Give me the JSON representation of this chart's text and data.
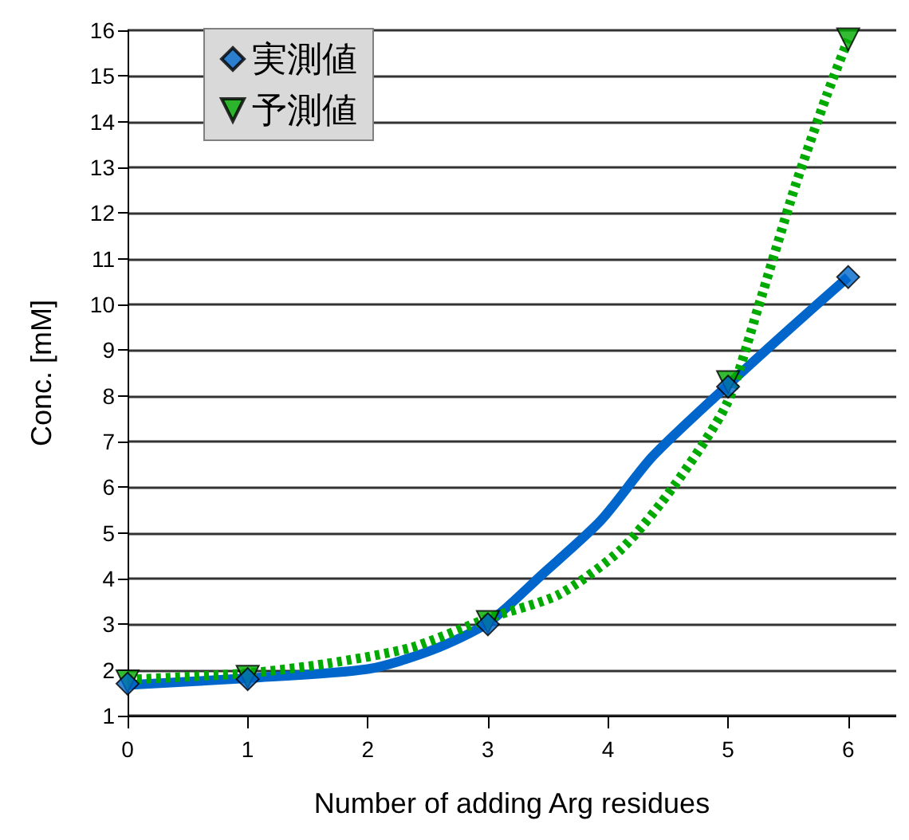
{
  "chart_data": {
    "type": "scatter",
    "xlabel": "Number of adding Arg residues",
    "ylabel": "Conc. [mM]",
    "xlim": [
      0,
      6.4
    ],
    "xticks": [
      0,
      1,
      2,
      3,
      4,
      5,
      6
    ],
    "ylim": [
      1,
      16
    ],
    "yticks": [
      1,
      2,
      3,
      4,
      5,
      6,
      7,
      8,
      9,
      10,
      11,
      12,
      13,
      14,
      15,
      16
    ],
    "grid": "y",
    "legend": "top left",
    "series": [
      {
        "type": "line",
        "color": "#0066cc",
        "line_style": "solid",
        "marker": "none",
        "x": [
          0,
          1,
          2,
          2.53,
          3,
          3.46,
          3.94,
          4.37,
          5,
          5.51,
          6
        ],
        "values": [
          1.67,
          1.82,
          2.02,
          2.43,
          3.03,
          4.11,
          5.27,
          6.67,
          8.24,
          9.46,
          10.6
        ]
      },
      {
        "type": "line",
        "color": "#00aa00",
        "line_style": "dotted",
        "marker": "none",
        "x": [
          0,
          1,
          1.66,
          2.36,
          3,
          3.59,
          4.11,
          4.55,
          4.99,
          5.25,
          5.56,
          5.82,
          6
        ],
        "values": [
          1.79,
          1.93,
          2.14,
          2.49,
          3.13,
          3.65,
          4.64,
          6.03,
          7.83,
          9.93,
          12.6,
          14.57,
          15.8
        ]
      },
      {
        "name": "予測値",
        "color": "#00aa00",
        "marker": "triangle",
        "x": [
          0,
          1,
          3,
          5,
          6
        ],
        "values": [
          1.75,
          1.85,
          3.05,
          8.3,
          15.8
        ]
      },
      {
        "name": "実測値",
        "color": "#0066cc",
        "marker": "diamond",
        "x": [
          0,
          1,
          3,
          5,
          6
        ],
        "values": [
          1.7,
          1.8,
          3.0,
          8.2,
          10.6
        ]
      }
    ]
  }
}
